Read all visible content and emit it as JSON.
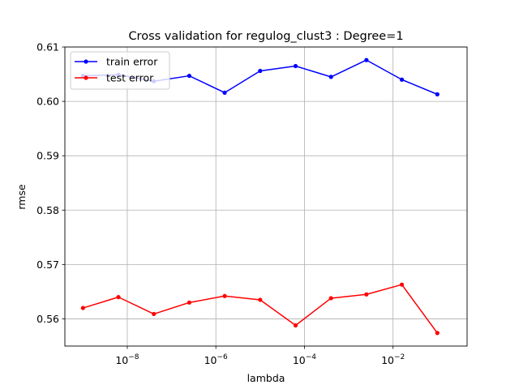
{
  "chart_data": {
    "type": "line",
    "title": "Cross validation for regulog_clust3 : Degree=1",
    "xlabel": "lambda",
    "ylabel": "rmse",
    "xscale": "log",
    "xlim": [
      3.9e-10,
      0.47
    ],
    "ylim": [
      0.555,
      0.61
    ],
    "grid": true,
    "legend_position": "top-left",
    "x_ticks": [
      {
        "value": 1e-08,
        "base": "10",
        "exp": "−8"
      },
      {
        "value": 1e-06,
        "base": "10",
        "exp": "−6"
      },
      {
        "value": 0.0001,
        "base": "10",
        "exp": "−4"
      },
      {
        "value": 0.01,
        "base": "10",
        "exp": "−2"
      }
    ],
    "y_ticks": [
      "0.56",
      "0.57",
      "0.58",
      "0.59",
      "0.60",
      "0.61"
    ],
    "x": [
      1e-09,
      6.31e-09,
      3.98e-08,
      2.51e-07,
      1.58e-06,
      1e-05,
      6.31e-05,
      0.000398,
      0.00251,
      0.0158,
      0.1
    ],
    "series": [
      {
        "name": "train error",
        "color": "#0000ff",
        "values": [
          0.6047,
          0.6049,
          0.6037,
          0.6047,
          0.6016,
          0.6056,
          0.6065,
          0.6045,
          0.6076,
          0.604,
          0.6013
        ]
      },
      {
        "name": "test error",
        "color": "#ff0000",
        "values": [
          0.562,
          0.564,
          0.5609,
          0.563,
          0.5642,
          0.5635,
          0.5588,
          0.5638,
          0.5645,
          0.5663,
          0.5574
        ]
      }
    ]
  }
}
